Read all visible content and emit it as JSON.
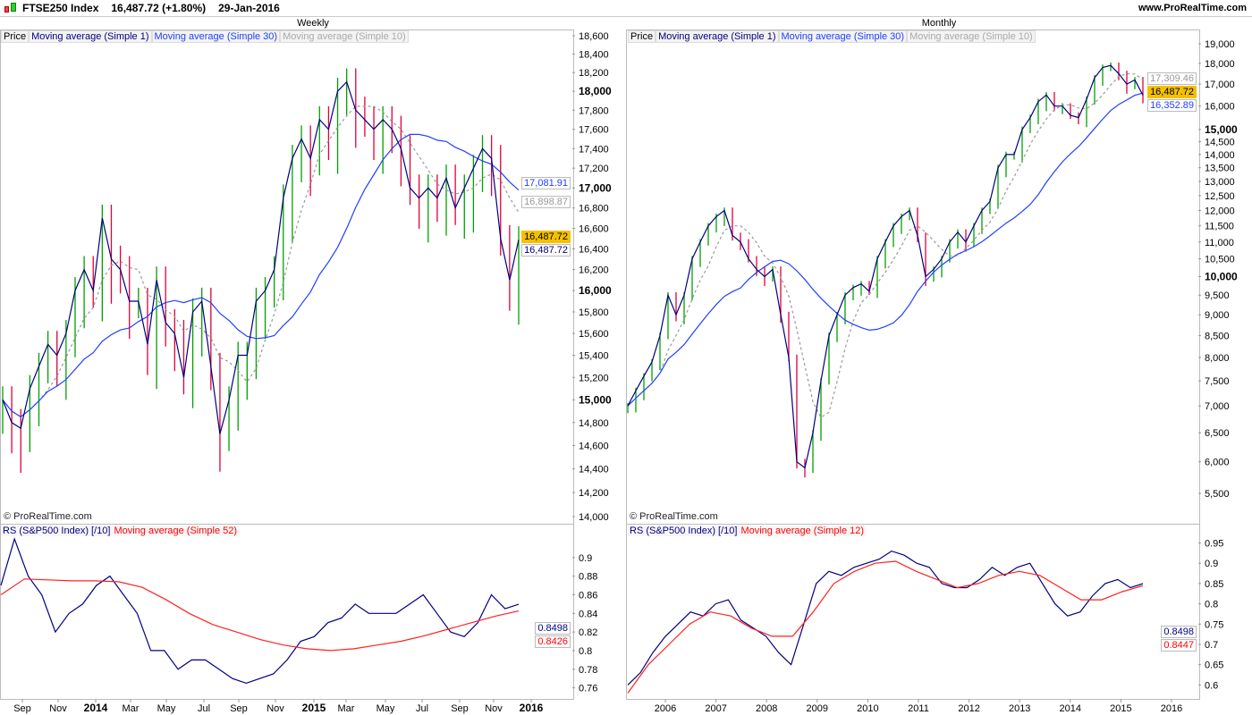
{
  "header": {
    "symbol": "FTSE250 Index",
    "price": "16,487.72 (+1.80%)",
    "date": "29-Jan-2016",
    "site": "www.ProRealTime.com"
  },
  "colors": {
    "up": "#00a000",
    "down": "#e0003c",
    "ma1": "#000080",
    "ma30": "#2040ff",
    "ma10": "#999999",
    "rs": "#000080",
    "rsma": "#ff2020",
    "last": "#f5c000"
  },
  "weekly": {
    "title": "Weekly",
    "legend": [
      "Price",
      "Moving average (Simple 1)",
      "Moving average (Simple 30)",
      "Moving average (Simple 10)"
    ],
    "copyright": "© ProRealTime.com",
    "tags": {
      "ma30": "17,081.91",
      "ma10": "16,898.87",
      "price": "16,487.72",
      "ma1": "16,487.72"
    },
    "rs_legend": [
      "RS (S&P500 Index) [/10]",
      "Moving average (Simple 52)"
    ],
    "rs_tags": {
      "rs": "0.8498",
      "ma": "0.8426"
    },
    "x_labels": [
      "Sep",
      "Nov",
      "2014",
      "Mar",
      "May",
      "Jul",
      "Sep",
      "Nov",
      "2015",
      "Mar",
      "May",
      "Jul",
      "Sep",
      "Nov",
      "2016"
    ],
    "x_bold": [
      "2014",
      "2015",
      "2016"
    ]
  },
  "monthly": {
    "title": "Monthly",
    "legend": [
      "Price",
      "Moving average (Simple 1)",
      "Moving average (Simple 30)",
      "Moving average (Simple 10)"
    ],
    "copyright": "© ProRealTime.com",
    "tags": {
      "ma10": "17,309.46",
      "price": "16,487.72",
      "ma30": "16,352.89"
    },
    "rs_legend": [
      "RS (S&P500 Index) [/10]",
      "Moving average (Simple 12)"
    ],
    "rs_tags": {
      "rs": "0.8498",
      "ma": "0.8447"
    },
    "x_labels": [
      "2006",
      "2007",
      "2008",
      "2009",
      "2010",
      "2011",
      "2012",
      "2013",
      "2014",
      "2015",
      "2016"
    ]
  },
  "chart_data": [
    {
      "type": "candlestick",
      "title": "FTSE250 Index Weekly",
      "scale": "log",
      "ylim": [
        14000,
        18600
      ],
      "y_ticks": [
        "14,000",
        "14,200",
        "14,400",
        "14,600",
        "14,800",
        "15,000",
        "15,200",
        "15,400",
        "15,600",
        "15,800",
        "16,000",
        "16,200",
        "16,400",
        "16,600",
        "16,800",
        "17,000",
        "17,200",
        "17,400",
        "17,600",
        "17,800",
        "18,000",
        "18,200",
        "18,400",
        "18,600"
      ],
      "x_range": [
        "Aug-2013",
        "Jan-2016"
      ],
      "close": [
        15000,
        14800,
        14750,
        15100,
        15300,
        15500,
        15400,
        15600,
        16000,
        16200,
        16000,
        16700,
        16300,
        16200,
        15900,
        15900,
        15500,
        16100,
        15700,
        15600,
        15200,
        15800,
        15900,
        15300,
        14700,
        15000,
        15400,
        15400,
        15900,
        16000,
        16200,
        16900,
        17300,
        17500,
        17300,
        17700,
        17600,
        18000,
        18100,
        17800,
        17700,
        17600,
        17700,
        17600,
        17400,
        17000,
        16900,
        17000,
        16900,
        17100,
        16800,
        17000,
        17200,
        17400,
        17300,
        16500,
        16100,
        16487.72
      ]
    },
    {
      "type": "candlestick",
      "title": "FTSE250 Index Monthly",
      "scale": "log",
      "ylim": [
        5500,
        19000
      ],
      "y_ticks": [
        "5,500",
        "6,000",
        "6,500",
        "7,000",
        "7,500",
        "8,000",
        "8,500",
        "9,000",
        "9,500",
        "10,000",
        "10,500",
        "11,000",
        "11,500",
        "12,000",
        "12,500",
        "13,000",
        "13,500",
        "14,000",
        "14,500",
        "15,000",
        "16,000",
        "17,000",
        "18,000",
        "19,000"
      ],
      "x_range": [
        "Mar-2005",
        "Jan-2016"
      ],
      "close": [
        7000,
        7300,
        7600,
        7900,
        8500,
        9500,
        9000,
        9500,
        10500,
        11000,
        11500,
        11800,
        12000,
        11200,
        11000,
        10500,
        10200,
        10000,
        10200,
        9000,
        8000,
        6000,
        5900,
        6500,
        7500,
        8500,
        9000,
        9500,
        9700,
        9800,
        9600,
        10500,
        11000,
        11500,
        11800,
        12000,
        11200,
        10000,
        10200,
        10500,
        11000,
        11300,
        11000,
        11500,
        12000,
        12300,
        13500,
        14000,
        14000,
        15000,
        15500,
        16200,
        16500,
        16000,
        16000,
        15600,
        15500,
        16300,
        17300,
        17800,
        17900,
        17500,
        17000,
        17200,
        16487.72
      ]
    },
    {
      "type": "line",
      "title": "RS (S&P500 Index) [/10] Weekly",
      "ylim": [
        0.75,
        0.92
      ],
      "y_ticks": [
        "0.76",
        "0.78",
        "0.8",
        "0.82",
        "0.84",
        "0.86",
        "0.88",
        "0.9"
      ],
      "series": [
        {
          "name": "RS (S&P500 Index) [/10]",
          "values": [
            0.87,
            0.92,
            0.88,
            0.86,
            0.82,
            0.84,
            0.85,
            0.87,
            0.88,
            0.86,
            0.84,
            0.8,
            0.8,
            0.78,
            0.79,
            0.79,
            0.78,
            0.77,
            0.765,
            0.77,
            0.775,
            0.79,
            0.81,
            0.815,
            0.83,
            0.835,
            0.85,
            0.84,
            0.84,
            0.84,
            0.85,
            0.86,
            0.84,
            0.82,
            0.815,
            0.83,
            0.86,
            0.845,
            0.8498
          ]
        },
        {
          "name": "Moving average (Simple 52)",
          "values": [
            0.86,
            0.877,
            0.876,
            0.875,
            0.875,
            0.874,
            0.868,
            0.855,
            0.84,
            0.828,
            0.82,
            0.812,
            0.806,
            0.802,
            0.8,
            0.802,
            0.806,
            0.81,
            0.816,
            0.823,
            0.83,
            0.837,
            0.8426
          ]
        }
      ]
    },
    {
      "type": "line",
      "title": "RS (S&P500 Index) [/10] Monthly",
      "ylim": [
        0.57,
        0.96
      ],
      "y_ticks": [
        "0.6",
        "0.65",
        "0.7",
        "0.75",
        "0.8",
        "0.85",
        "0.9",
        "0.95"
      ],
      "series": [
        {
          "name": "RS (S&P500 Index) [/10]",
          "values": [
            0.6,
            0.63,
            0.68,
            0.72,
            0.75,
            0.78,
            0.77,
            0.8,
            0.81,
            0.76,
            0.74,
            0.72,
            0.68,
            0.65,
            0.75,
            0.85,
            0.88,
            0.87,
            0.89,
            0.9,
            0.91,
            0.93,
            0.92,
            0.9,
            0.89,
            0.85,
            0.84,
            0.84,
            0.86,
            0.89,
            0.87,
            0.89,
            0.9,
            0.85,
            0.8,
            0.77,
            0.78,
            0.82,
            0.85,
            0.86,
            0.84,
            0.8498
          ]
        },
        {
          "name": "Moving average (Simple 12)",
          "values": [
            0.58,
            0.65,
            0.7,
            0.75,
            0.78,
            0.77,
            0.74,
            0.72,
            0.72,
            0.78,
            0.85,
            0.88,
            0.9,
            0.905,
            0.88,
            0.86,
            0.84,
            0.85,
            0.87,
            0.88,
            0.87,
            0.84,
            0.81,
            0.81,
            0.83,
            0.8447
          ]
        }
      ]
    }
  ]
}
